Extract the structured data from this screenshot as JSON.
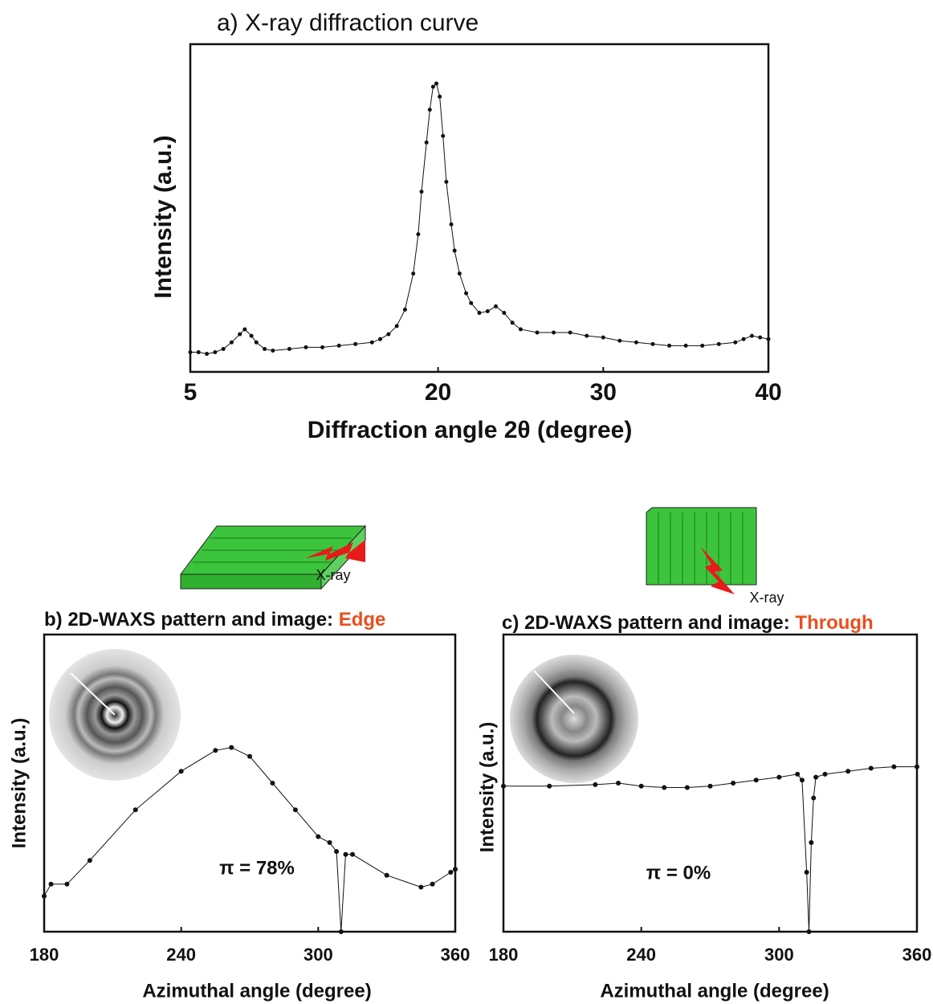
{
  "chart_data": [
    {
      "type": "line",
      "title": "a) X-ray diffraction curve",
      "xlabel": "Diffraction angle 2θ (degree)",
      "ylabel": "Intensity  (a.u.)",
      "x": [
        5,
        5.5,
        6,
        6.5,
        7,
        7.5,
        8,
        8.3,
        8.7,
        9,
        9.5,
        10,
        11,
        12,
        13,
        14,
        15,
        16,
        16.5,
        17,
        17.5,
        18,
        18.5,
        18.8,
        19,
        19.3,
        19.5,
        19.7,
        19.9,
        20.1,
        20.3,
        20.5,
        20.8,
        21,
        21.3,
        21.7,
        22,
        22.5,
        23,
        23.5,
        24,
        24.5,
        25,
        26,
        27,
        28,
        29,
        30,
        31,
        32,
        33,
        34,
        35,
        36,
        37,
        38,
        38.5,
        39,
        39.5,
        40
      ],
      "values": [
        6,
        6,
        5.5,
        6,
        7,
        9,
        11.5,
        13,
        11,
        9,
        7,
        6.5,
        7,
        7.5,
        7.5,
        8,
        8.5,
        9,
        10,
        11.5,
        14,
        19,
        30,
        42,
        55,
        70,
        80,
        87,
        88,
        84,
        72,
        58,
        45,
        37,
        30,
        24,
        21,
        18,
        18.5,
        20,
        18,
        15,
        13,
        12,
        12,
        12,
        11,
        10.5,
        9.5,
        9,
        8.5,
        8,
        8,
        8,
        8.5,
        9,
        10,
        11,
        10.5,
        10
      ],
      "color": "#111111",
      "xlim": [
        5,
        40
      ],
      "xticks": [
        5,
        20,
        30,
        40
      ],
      "ylim": [
        0,
        100
      ]
    },
    {
      "type": "line",
      "title": "b) 2D-WAXS pattern and image:",
      "title_highlight": "Edge",
      "illustration_label": "X-ray",
      "xlabel": "Azimuthal angle (degree)",
      "ylabel": "Intensity (a.u.)",
      "annotation": "π = 78%",
      "x": [
        180,
        183,
        190,
        200,
        220,
        240,
        255,
        262,
        270,
        280,
        290,
        300,
        305,
        308,
        310,
        312,
        315,
        330,
        345,
        350,
        358,
        360
      ],
      "values": [
        12,
        16,
        16,
        24,
        41,
        54,
        61,
        62,
        59,
        50,
        41,
        32,
        30,
        27,
        0,
        26,
        26,
        19,
        15,
        16,
        20,
        21
      ],
      "color": "#111111",
      "xlim": [
        180,
        360
      ],
      "xticks": [
        180,
        240,
        300,
        360
      ],
      "ylim": [
        0,
        100
      ]
    },
    {
      "type": "line",
      "title": "c) 2D-WAXS pattern and image:",
      "title_highlight": "Through",
      "illustration_label": "X-ray",
      "xlabel": "Azimuthal angle (degree)",
      "ylabel": "Intensity (a.u.)",
      "annotation": "π = 0%",
      "x": [
        180,
        200,
        220,
        230,
        240,
        250,
        260,
        270,
        280,
        290,
        300,
        308,
        310,
        312,
        313,
        314,
        315,
        316,
        320,
        330,
        340,
        350,
        360
      ],
      "values": [
        49,
        49,
        49.5,
        50,
        49,
        48.5,
        48.5,
        49,
        50,
        51,
        52,
        53,
        51,
        20,
        0,
        30,
        45,
        52,
        53,
        54,
        55,
        55.5,
        55.5
      ],
      "color": "#111111",
      "xlim": [
        180,
        360
      ],
      "xticks": [
        180,
        240,
        300,
        360
      ],
      "ylim": [
        0,
        100
      ]
    }
  ]
}
